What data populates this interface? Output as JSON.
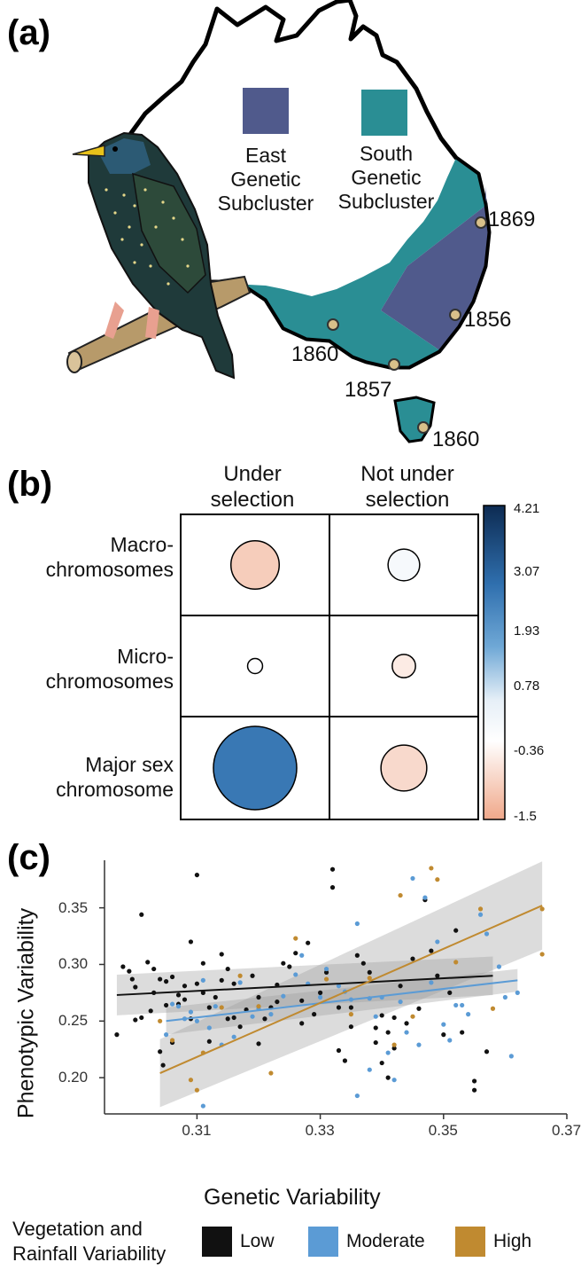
{
  "panel_a": {
    "label": "(a)",
    "legend": [
      {
        "name": "East Genetic Subcluster",
        "lines": [
          "East",
          "Genetic",
          "Subcluster"
        ],
        "color": "#505a8c"
      },
      {
        "name": "South Genetic Subcluster",
        "lines": [
          "South",
          "Genetic",
          "Subcluster"
        ],
        "color": "#2a8e94"
      }
    ],
    "introductions": [
      "1869",
      "1856",
      "1860",
      "1857",
      "1860"
    ],
    "marker_color": "#d8c08a"
  },
  "panel_b": {
    "label": "(b)",
    "columns": [
      [
        "Under",
        "selection"
      ],
      [
        "Not under",
        "selection"
      ]
    ],
    "rows": [
      [
        "Macro-",
        "chromosomes"
      ],
      [
        "Micro-",
        "chromosomes"
      ],
      [
        "Major sex",
        "chromosome"
      ]
    ],
    "colorbar_ticks": [
      "4.21",
      "3.07",
      "1.93",
      "0.78",
      "-0.36",
      "-1.5"
    ],
    "cells": [
      {
        "row": 0,
        "col": 0,
        "value": -0.9,
        "size": 0.58
      },
      {
        "row": 0,
        "col": 1,
        "value": 0.2,
        "size": 0.38
      },
      {
        "row": 1,
        "col": 0,
        "value": 0.0,
        "size": 0.18
      },
      {
        "row": 1,
        "col": 1,
        "value": -0.4,
        "size": 0.28
      },
      {
        "row": 2,
        "col": 0,
        "value": 2.6,
        "size": 1.0
      },
      {
        "row": 2,
        "col": 1,
        "value": -0.7,
        "size": 0.55
      }
    ]
  },
  "chart_data": {
    "type": "scatter",
    "label": "(c)",
    "xlabel": "Genetic Variability",
    "ylabel": "Phenotypic Variability",
    "xlim": [
      0.295,
      0.37
    ],
    "ylim": [
      0.168,
      0.392
    ],
    "x_ticks": [
      "0.31",
      "0.33",
      "0.35",
      "0.37"
    ],
    "y_ticks": [
      "0.20",
      "0.25",
      "0.30",
      "0.35"
    ],
    "legend_title_lines": [
      "Vegetation and",
      "Rainfall Variability"
    ],
    "series": [
      {
        "name": "Low",
        "color": "#111111",
        "fit": {
          "x": [
            0.297,
            0.358
          ],
          "y": [
            0.273,
            0.29
          ],
          "ci_lo": [
            0.255,
            0.273
          ],
          "ci_hi": [
            0.291,
            0.307
          ]
        },
        "points": [
          [
            0.297,
            0.238
          ],
          [
            0.298,
            0.298
          ],
          [
            0.299,
            0.294
          ],
          [
            0.2995,
            0.287
          ],
          [
            0.3,
            0.28
          ],
          [
            0.3,
            0.251
          ],
          [
            0.301,
            0.253
          ],
          [
            0.301,
            0.344
          ],
          [
            0.302,
            0.302
          ],
          [
            0.3025,
            0.259
          ],
          [
            0.303,
            0.275
          ],
          [
            0.303,
            0.296
          ],
          [
            0.304,
            0.223
          ],
          [
            0.304,
            0.287
          ],
          [
            0.3045,
            0.211
          ],
          [
            0.305,
            0.285
          ],
          [
            0.305,
            0.264
          ],
          [
            0.306,
            0.231
          ],
          [
            0.306,
            0.289
          ],
          [
            0.307,
            0.265
          ],
          [
            0.307,
            0.273
          ],
          [
            0.308,
            0.269
          ],
          [
            0.308,
            0.281
          ],
          [
            0.309,
            0.252
          ],
          [
            0.309,
            0.32
          ],
          [
            0.31,
            0.283
          ],
          [
            0.31,
            0.379
          ],
          [
            0.311,
            0.275
          ],
          [
            0.311,
            0.301
          ],
          [
            0.312,
            0.232
          ],
          [
            0.312,
            0.262
          ],
          [
            0.313,
            0.271
          ],
          [
            0.314,
            0.309
          ],
          [
            0.314,
            0.286
          ],
          [
            0.315,
            0.296
          ],
          [
            0.315,
            0.252
          ],
          [
            0.316,
            0.283
          ],
          [
            0.316,
            0.253
          ],
          [
            0.317,
            0.245
          ],
          [
            0.318,
            0.26
          ],
          [
            0.319,
            0.29
          ],
          [
            0.32,
            0.23
          ],
          [
            0.32,
            0.271
          ],
          [
            0.321,
            0.252
          ],
          [
            0.322,
            0.262
          ],
          [
            0.323,
            0.267
          ],
          [
            0.323,
            0.282
          ],
          [
            0.324,
            0.301
          ],
          [
            0.325,
            0.298
          ],
          [
            0.326,
            0.31
          ],
          [
            0.327,
            0.248
          ],
          [
            0.327,
            0.268
          ],
          [
            0.328,
            0.319
          ],
          [
            0.329,
            0.256
          ],
          [
            0.33,
            0.275
          ],
          [
            0.331,
            0.293
          ],
          [
            0.332,
            0.368
          ],
          [
            0.332,
            0.384
          ],
          [
            0.333,
            0.224
          ],
          [
            0.333,
            0.262
          ],
          [
            0.334,
            0.215
          ],
          [
            0.335,
            0.262
          ],
          [
            0.335,
            0.245
          ],
          [
            0.336,
            0.308
          ],
          [
            0.337,
            0.301
          ],
          [
            0.338,
            0.293
          ],
          [
            0.339,
            0.244
          ],
          [
            0.339,
            0.231
          ],
          [
            0.34,
            0.213
          ],
          [
            0.34,
            0.255
          ],
          [
            0.341,
            0.24
          ],
          [
            0.341,
            0.2
          ],
          [
            0.342,
            0.253
          ],
          [
            0.342,
            0.226
          ],
          [
            0.343,
            0.281
          ],
          [
            0.344,
            0.248
          ],
          [
            0.345,
            0.305
          ],
          [
            0.346,
            0.261
          ],
          [
            0.347,
            0.357
          ],
          [
            0.348,
            0.312
          ],
          [
            0.349,
            0.29
          ],
          [
            0.35,
            0.238
          ],
          [
            0.351,
            0.275
          ],
          [
            0.352,
            0.33
          ],
          [
            0.353,
            0.24
          ],
          [
            0.355,
            0.197
          ],
          [
            0.355,
            0.189
          ],
          [
            0.357,
            0.223
          ]
        ]
      },
      {
        "name": "Moderate",
        "color": "#5b9bd5",
        "fit": {
          "x": [
            0.305,
            0.362
          ],
          "y": [
            0.25,
            0.286
          ],
          "ci_lo": [
            0.238,
            0.276
          ],
          "ci_hi": [
            0.262,
            0.296
          ]
        },
        "points": [
          [
            0.305,
            0.238
          ],
          [
            0.306,
            0.265
          ],
          [
            0.307,
            0.263
          ],
          [
            0.308,
            0.252
          ],
          [
            0.309,
            0.258
          ],
          [
            0.31,
            0.25
          ],
          [
            0.311,
            0.286
          ],
          [
            0.311,
            0.175
          ],
          [
            0.312,
            0.244
          ],
          [
            0.313,
            0.263
          ],
          [
            0.314,
            0.229
          ],
          [
            0.316,
            0.236
          ],
          [
            0.317,
            0.284
          ],
          [
            0.319,
            0.254
          ],
          [
            0.32,
            0.261
          ],
          [
            0.322,
            0.256
          ],
          [
            0.324,
            0.272
          ],
          [
            0.326,
            0.291
          ],
          [
            0.327,
            0.308
          ],
          [
            0.328,
            0.283
          ],
          [
            0.33,
            0.271
          ],
          [
            0.331,
            0.296
          ],
          [
            0.333,
            0.281
          ],
          [
            0.334,
            0.276
          ],
          [
            0.335,
            0.269
          ],
          [
            0.336,
            0.184
          ],
          [
            0.336,
            0.336
          ],
          [
            0.338,
            0.27
          ],
          [
            0.338,
            0.207
          ],
          [
            0.339,
            0.254
          ],
          [
            0.34,
            0.271
          ],
          [
            0.341,
            0.222
          ],
          [
            0.342,
            0.198
          ],
          [
            0.343,
            0.267
          ],
          [
            0.344,
            0.24
          ],
          [
            0.345,
            0.376
          ],
          [
            0.346,
            0.229
          ],
          [
            0.347,
            0.359
          ],
          [
            0.348,
            0.284
          ],
          [
            0.349,
            0.32
          ],
          [
            0.35,
            0.247
          ],
          [
            0.351,
            0.233
          ],
          [
            0.352,
            0.264
          ],
          [
            0.353,
            0.264
          ],
          [
            0.354,
            0.256
          ],
          [
            0.356,
            0.344
          ],
          [
            0.357,
            0.327
          ],
          [
            0.359,
            0.298
          ],
          [
            0.36,
            0.271
          ],
          [
            0.361,
            0.219
          ],
          [
            0.362,
            0.275
          ]
        ]
      },
      {
        "name": "High",
        "color": "#c08a30",
        "fit": {
          "x": [
            0.304,
            0.366
          ],
          "y": [
            0.204,
            0.352
          ],
          "ci_lo": [
            0.174,
            0.313
          ],
          "ci_hi": [
            0.234,
            0.391
          ]
        },
        "points": [
          [
            0.304,
            0.25
          ],
          [
            0.306,
            0.233
          ],
          [
            0.309,
            0.198
          ],
          [
            0.31,
            0.189
          ],
          [
            0.311,
            0.222
          ],
          [
            0.314,
            0.262
          ],
          [
            0.317,
            0.29
          ],
          [
            0.32,
            0.263
          ],
          [
            0.322,
            0.204
          ],
          [
            0.326,
            0.323
          ],
          [
            0.331,
            0.287
          ],
          [
            0.335,
            0.256
          ],
          [
            0.338,
            0.288
          ],
          [
            0.342,
            0.229
          ],
          [
            0.343,
            0.361
          ],
          [
            0.345,
            0.254
          ],
          [
            0.348,
            0.385
          ],
          [
            0.349,
            0.375
          ],
          [
            0.352,
            0.302
          ],
          [
            0.356,
            0.349
          ],
          [
            0.358,
            0.261
          ],
          [
            0.366,
            0.349
          ],
          [
            0.366,
            0.309
          ]
        ]
      }
    ]
  }
}
